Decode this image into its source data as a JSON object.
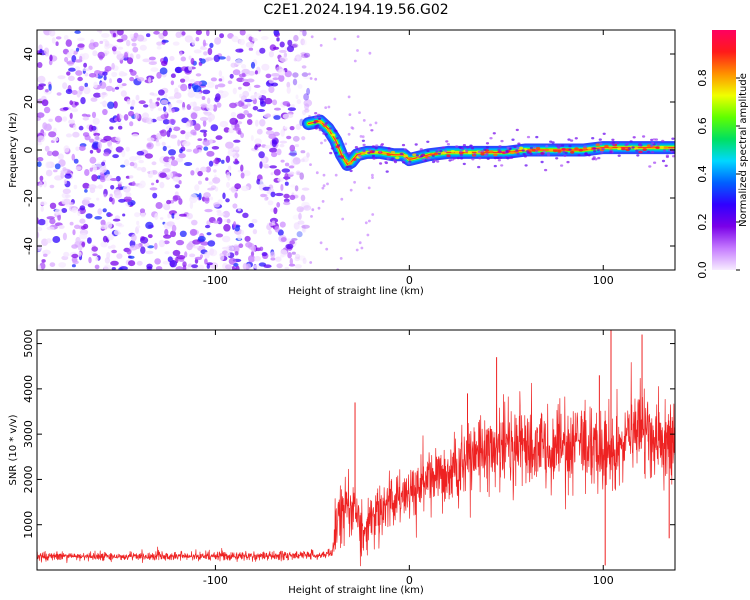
{
  "title": "C2E1.2024.194.19.56.G02",
  "chart_data": [
    {
      "type": "heatmap",
      "xlabel": "Height of straight line (km)",
      "ylabel": "Frequency (Hz)",
      "xlim": [
        -192,
        137
      ],
      "ylim": [
        -50,
        50
      ],
      "xticks": [
        -100,
        0,
        100
      ],
      "yticks": [
        -40,
        -20,
        0,
        20,
        40
      ],
      "colorbar": {
        "label": "Normalized spectral amplitude",
        "range": [
          0,
          1
        ],
        "ticks": [
          0.0,
          0.2,
          0.4,
          0.6,
          0.8
        ],
        "colormap": [
          "#f7ecff",
          "#c57aff",
          "#7a00e8",
          "#3000ff",
          "#0060ff",
          "#00d8ff",
          "#00e060",
          "#60ff00",
          "#f0ff00",
          "#ff9000",
          "#ff1a1a",
          "#ff0060"
        ]
      },
      "signal_track": [
        {
          "x": -52,
          "y": 11
        },
        {
          "x": -46,
          "y": 12
        },
        {
          "x": -42,
          "y": 9
        },
        {
          "x": -38,
          "y": 4
        },
        {
          "x": -35,
          "y": -2
        },
        {
          "x": -32,
          "y": -6
        },
        {
          "x": -30,
          "y": -5
        },
        {
          "x": -27,
          "y": -2
        },
        {
          "x": -22,
          "y": -1
        },
        {
          "x": -15,
          "y": -1
        },
        {
          "x": -8,
          "y": -2
        },
        {
          "x": -3,
          "y": -2
        },
        {
          "x": 0,
          "y": -4
        },
        {
          "x": 5,
          "y": -3
        },
        {
          "x": 10,
          "y": -2
        },
        {
          "x": 20,
          "y": -1
        },
        {
          "x": 30,
          "y": -1
        },
        {
          "x": 40,
          "y": -1
        },
        {
          "x": 50,
          "y": -1
        },
        {
          "x": 60,
          "y": 0
        },
        {
          "x": 70,
          "y": 0
        },
        {
          "x": 80,
          "y": 0
        },
        {
          "x": 90,
          "y": 0
        },
        {
          "x": 100,
          "y": 1
        },
        {
          "x": 110,
          "y": 1
        },
        {
          "x": 120,
          "y": 1
        },
        {
          "x": 137,
          "y": 1
        }
      ],
      "noise_region_x": [
        -192,
        -52
      ]
    },
    {
      "type": "line",
      "xlabel": "Height of straight line (km)",
      "ylabel": "SNR (10 * v/v)",
      "xlim": [
        -192,
        137
      ],
      "ylim": [
        0,
        5300
      ],
      "xticks": [
        -100,
        0,
        100
      ],
      "yticks": [
        1000,
        2000,
        3000,
        4000,
        5000
      ],
      "series": [
        {
          "color": "#ee2222",
          "trend": [
            {
              "x": -192,
              "y": 300
            },
            {
              "x": -150,
              "y": 300
            },
            {
              "x": -100,
              "y": 300
            },
            {
              "x": -60,
              "y": 320
            },
            {
              "x": -40,
              "y": 350
            },
            {
              "x": -38,
              "y": 900
            },
            {
              "x": -33,
              "y": 1500
            },
            {
              "x": -28,
              "y": 1400
            },
            {
              "x": -24,
              "y": 700
            },
            {
              "x": -20,
              "y": 1100
            },
            {
              "x": -10,
              "y": 1500
            },
            {
              "x": 0,
              "y": 1700
            },
            {
              "x": 10,
              "y": 1900
            },
            {
              "x": 20,
              "y": 2100
            },
            {
              "x": 30,
              "y": 2400
            },
            {
              "x": 40,
              "y": 2600
            },
            {
              "x": 50,
              "y": 2800
            },
            {
              "x": 60,
              "y": 2700
            },
            {
              "x": 70,
              "y": 2600
            },
            {
              "x": 80,
              "y": 2700
            },
            {
              "x": 90,
              "y": 2800
            },
            {
              "x": 100,
              "y": 2500
            },
            {
              "x": 110,
              "y": 2900
            },
            {
              "x": 120,
              "y": 3100
            },
            {
              "x": 130,
              "y": 2800
            },
            {
              "x": 137,
              "y": 2700
            }
          ],
          "noise_amplitude": [
            {
              "x": -192,
              "y": 80
            },
            {
              "x": -40,
              "y": 90
            },
            {
              "x": -38,
              "y": 600
            },
            {
              "x": -20,
              "y": 500
            },
            {
              "x": 40,
              "y": 700
            },
            {
              "x": 137,
              "y": 900
            }
          ],
          "peaks": [
            {
              "x": -28,
              "y": 3700
            },
            {
              "x": 30,
              "y": 3900
            },
            {
              "x": 45,
              "y": 4700
            },
            {
              "x": 98,
              "y": 4300
            },
            {
              "x": 104,
              "y": 5350
            },
            {
              "x": 120,
              "y": 5200
            },
            {
              "x": 101,
              "y": 100
            },
            {
              "x": 134,
              "y": 700
            }
          ]
        }
      ]
    }
  ]
}
